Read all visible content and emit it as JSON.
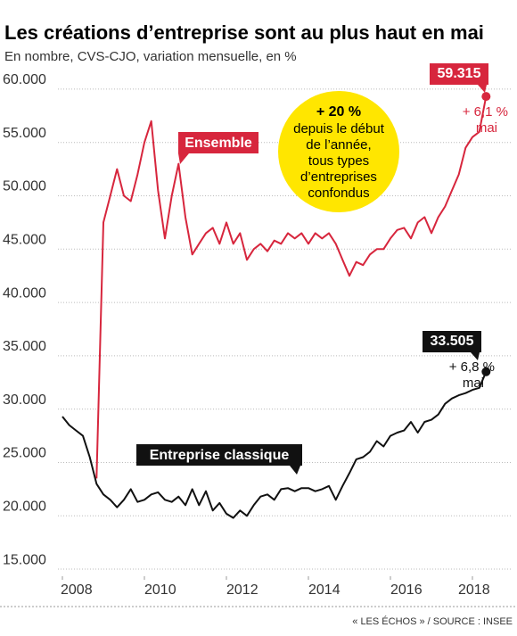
{
  "chart_data": {
    "type": "line",
    "title": "Les créations d’entreprise sont au plus haut en mai",
    "subtitle": "En nombre, CVS-CJO, variation mensuelle, en %",
    "source": "« LES ÉCHOS » / SOURCE : INSEE",
    "x": [
      2008,
      2008.167,
      2008.333,
      2008.5,
      2008.667,
      2008.833,
      2009,
      2009.167,
      2009.333,
      2009.5,
      2009.667,
      2009.833,
      2010,
      2010.167,
      2010.333,
      2010.5,
      2010.667,
      2010.833,
      2011,
      2011.167,
      2011.333,
      2011.5,
      2011.667,
      2011.833,
      2012,
      2012.167,
      2012.333,
      2012.5,
      2012.667,
      2012.833,
      2013,
      2013.167,
      2013.333,
      2013.5,
      2013.667,
      2013.833,
      2014,
      2014.167,
      2014.333,
      2014.5,
      2014.667,
      2014.833,
      2015,
      2015.167,
      2015.333,
      2015.5,
      2015.667,
      2015.833,
      2016,
      2016.167,
      2016.333,
      2016.5,
      2016.667,
      2016.833,
      2017,
      2017.167,
      2017.333,
      2017.5,
      2017.667,
      2017.833,
      2018,
      2018.167,
      2018.333
    ],
    "xlim": [
      2007.9,
      2018.6
    ],
    "xticks": [
      2008,
      2010,
      2012,
      2014,
      2016,
      2018
    ],
    "ylim": [
      14000,
      61500
    ],
    "yticks": [
      {
        "value": 15000,
        "label": "15.000"
      },
      {
        "value": 20000,
        "label": "20.000"
      },
      {
        "value": 25000,
        "label": "25.000"
      },
      {
        "value": 30000,
        "label": "30.000"
      },
      {
        "value": 35000,
        "label": "35.000"
      },
      {
        "value": 40000,
        "label": "40.000"
      },
      {
        "value": 45000,
        "label": "45.000"
      },
      {
        "value": 50000,
        "label": "50.000"
      },
      {
        "value": 55000,
        "label": "55.000"
      },
      {
        "value": 60000,
        "label": "60.000"
      }
    ],
    "grid": true,
    "series": [
      {
        "name": "Ensemble",
        "color": "#d7263d",
        "values": [
          null,
          null,
          null,
          null,
          null,
          23500,
          47500,
          50000,
          52500,
          50000,
          49500,
          52000,
          55000,
          57000,
          50500,
          46000,
          50000,
          53000,
          48000,
          44500,
          45500,
          46500,
          47000,
          45500,
          47500,
          45500,
          46500,
          44000,
          45000,
          45500,
          44800,
          45800,
          45500,
          46500,
          46000,
          46500,
          45500,
          46500,
          46000,
          46500,
          45500,
          44000,
          42500,
          43800,
          43500,
          44500,
          45000,
          45000,
          46000,
          46800,
          47000,
          46000,
          47500,
          48000,
          46500,
          48000,
          49000,
          50500,
          52000,
          54500,
          55500,
          56000,
          59315
        ],
        "value_labels": [
          null,
          null,
          null,
          null,
          null,
          null,
          null,
          null,
          null,
          null,
          null,
          null,
          null,
          null,
          null,
          null,
          null,
          null,
          null,
          null,
          null,
          null,
          null,
          null,
          null,
          null,
          null,
          null,
          null,
          null,
          null,
          null,
          null,
          null,
          null,
          null,
          null,
          null,
          null,
          null,
          null,
          null,
          null,
          null,
          null,
          null,
          null,
          null,
          null,
          null,
          null,
          null,
          null,
          null,
          null,
          null,
          null,
          null,
          null,
          null,
          null,
          null,
          "59.315"
        ],
        "note": [
          "+ 6,1 %",
          "mai"
        ]
      },
      {
        "name": "Entreprise classique",
        "color": "#111111",
        "values": [
          29300,
          28500,
          28000,
          27500,
          25500,
          23000,
          22000,
          21500,
          20800,
          21500,
          22500,
          21300,
          21500,
          22000,
          22200,
          21500,
          21300,
          21800,
          21000,
          22500,
          21000,
          22300,
          20500,
          21200,
          20200,
          19800,
          20500,
          20000,
          21000,
          21800,
          22000,
          21500,
          22500,
          22600,
          22300,
          22600,
          22600,
          22300,
          22500,
          22800,
          21500,
          22800,
          24000,
          25300,
          25500,
          26000,
          27000,
          26500,
          27500,
          27800,
          28000,
          28800,
          27800,
          28800,
          29000,
          29500,
          30500,
          31000,
          31300,
          31500,
          31800,
          32000,
          33505
        ],
        "value_labels": [
          null,
          null,
          null,
          null,
          null,
          null,
          null,
          null,
          null,
          null,
          null,
          null,
          null,
          null,
          null,
          null,
          null,
          null,
          null,
          null,
          null,
          null,
          null,
          null,
          null,
          null,
          null,
          null,
          null,
          null,
          null,
          null,
          null,
          null,
          null,
          null,
          null,
          null,
          null,
          null,
          null,
          null,
          null,
          null,
          null,
          null,
          null,
          null,
          null,
          null,
          null,
          null,
          null,
          null,
          null,
          null,
          null,
          null,
          null,
          null,
          null,
          null,
          "33.505"
        ],
        "note": [
          "+ 6,8 %",
          "mai"
        ]
      }
    ],
    "callout": {
      "headline": "+ 20 %",
      "lines": [
        "depuis le début",
        "de l’année,",
        "tous types",
        "d’entreprises",
        "confondus"
      ],
      "color": "#ffe600"
    }
  }
}
